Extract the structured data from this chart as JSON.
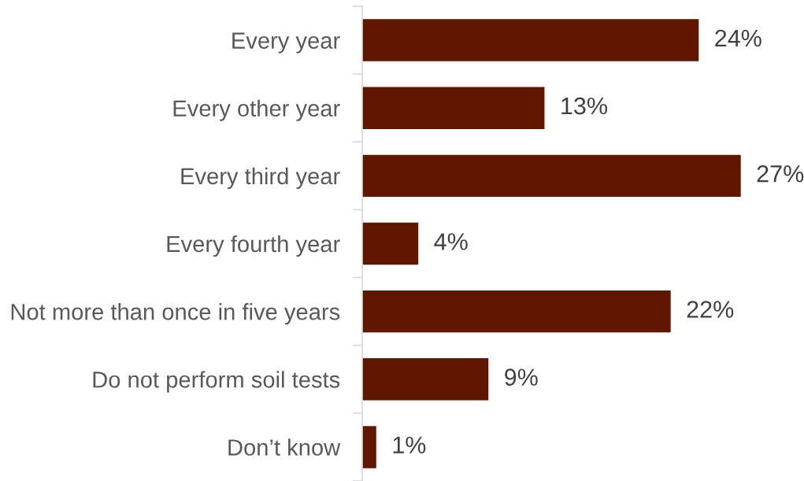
{
  "chart_data": {
    "type": "bar",
    "orientation": "horizontal",
    "categories": [
      "Every year",
      "Every other year",
      "Every third year",
      "Every fourth year",
      "Not more than once in five years",
      "Do not perform soil tests",
      "Don’t know"
    ],
    "values": [
      24,
      13,
      27,
      4,
      22,
      9,
      1
    ],
    "value_labels": [
      "24%",
      "13%",
      "27%",
      "4%",
      "22%",
      "9%",
      "1%"
    ],
    "color": "#5f1700",
    "grid": false,
    "legend": false
  }
}
